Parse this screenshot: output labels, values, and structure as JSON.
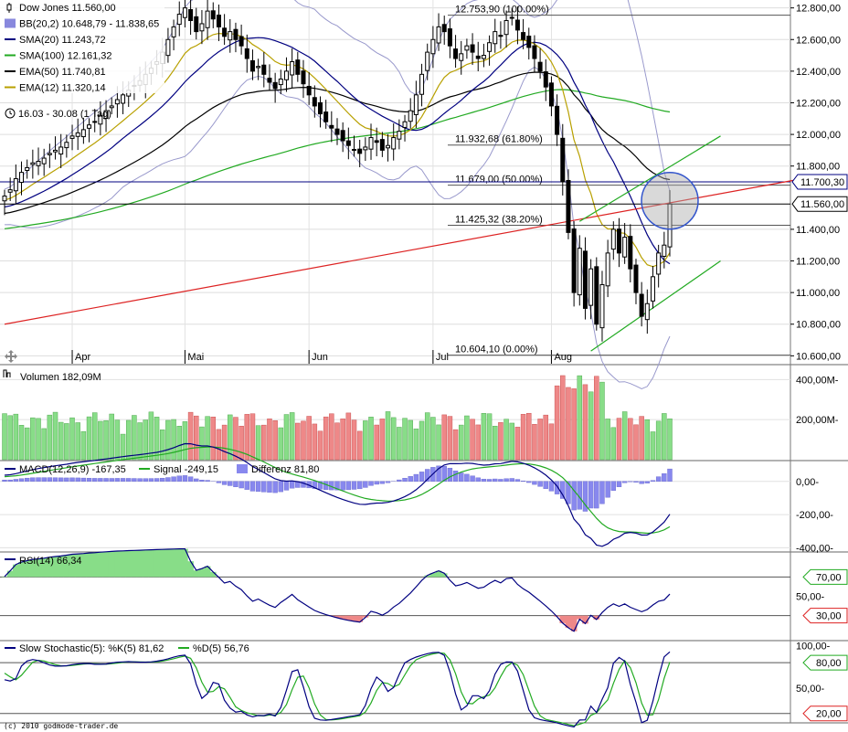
{
  "chart_data": [
    {
      "type": "candlestick",
      "panel": "price",
      "legend": [
        {
          "text": "Dow Jones 11.560,00",
          "color": "#000000",
          "marker": "candle"
        },
        {
          "text": "BB(20,2) 10.648,79 - 11.838,65",
          "color": "#8888dd",
          "marker": "box"
        },
        {
          "text": "SMA(20) 11.243,72",
          "color": "#000080",
          "marker": "line"
        },
        {
          "text": "SMA(100) 12.161,32",
          "color": "#22aa22",
          "marker": "line"
        },
        {
          "text": "EMA(50) 11.740,81",
          "color": "#000000",
          "marker": "line"
        },
        {
          "text": "EMA(12) 11.320,14",
          "color": "#b8a000",
          "marker": "line"
        }
      ],
      "period_text": "16.03 - 30.08 (1 Tag)",
      "ylim": [
        10550,
        12850
      ],
      "y_ticks": [
        "12.800,00",
        "12.600,00",
        "12.400,00",
        "12.200,00",
        "12.000,00",
        "11.800,00",
        "11.400,00",
        "11.200,00",
        "11.000,00",
        "10.800,00",
        "10.600,00"
      ],
      "y_tick_values": [
        12800,
        12600,
        12400,
        12200,
        12000,
        11800,
        11400,
        11200,
        11000,
        10800,
        10600
      ],
      "month_labels": [
        {
          "label": "Apr",
          "index": 12
        },
        {
          "label": "Mai",
          "index": 32
        },
        {
          "label": "Jun",
          "index": 54
        },
        {
          "label": "Jul",
          "index": 76
        },
        {
          "label": "Aug",
          "index": 97
        }
      ],
      "price_tags": [
        {
          "text": "11.700,30",
          "value": 11700.3,
          "color": "#000080"
        },
        {
          "text": "11.560,00",
          "value": 11560,
          "color": "#000000"
        }
      ],
      "fibonacci": [
        {
          "text": "12.753,90 (100.00%)",
          "value": 12753.9
        },
        {
          "text": "11.932,68 (61.80%)",
          "value": 11932.68
        },
        {
          "text": "11.679,00 (50.00%)",
          "value": 11679
        },
        {
          "text": "11.425,32 (38.20%)",
          "value": 11425.32
        },
        {
          "text": "10.604,10 (0.00%)",
          "value": 10604.1
        }
      ],
      "trendlines": [
        {
          "name": "red-trend",
          "color": "#dd2222",
          "from": [
            0,
            10800
          ],
          "to": [
            140,
            11710
          ]
        },
        {
          "name": "green-upper",
          "color": "#22aa22",
          "from": [
            102,
            11450
          ],
          "to": [
            127,
            11990
          ]
        },
        {
          "name": "green-lower",
          "color": "#22aa22",
          "from": [
            104,
            10630
          ],
          "to": [
            127,
            11200
          ]
        }
      ],
      "highlight_circle": {
        "index": 118,
        "value": 11580
      },
      "closes": [
        11610,
        11650,
        11720,
        11760,
        11790,
        11820,
        11830,
        11850,
        11880,
        11900,
        11920,
        11950,
        11990,
        12010,
        12030,
        12060,
        12080,
        12120,
        12150,
        12180,
        12220,
        12250,
        12280,
        12310,
        12340,
        12380,
        12420,
        12460,
        12520,
        12600,
        12680,
        12760,
        12800,
        12720,
        12650,
        12700,
        12780,
        12730,
        12680,
        12620,
        12650,
        12600,
        12560,
        12480,
        12400,
        12430,
        12380,
        12330,
        12290,
        12350,
        12400,
        12460,
        12380,
        12320,
        12250,
        12180,
        12130,
        12080,
        12040,
        12000,
        11960,
        11930,
        11900,
        11880,
        11920,
        11980,
        11950,
        11900,
        11930,
        11980,
        12020,
        12080,
        12150,
        12250,
        12380,
        12520,
        12600,
        12680,
        12650,
        12560,
        12480,
        12510,
        12560,
        12520,
        12480,
        12500,
        12580,
        12650,
        12620,
        12720,
        12740,
        12660,
        12600,
        12550,
        12480,
        12400,
        12300,
        12180,
        12000,
        11700,
        11380,
        11000,
        11280,
        10900,
        11150,
        10800,
        11050,
        11250,
        11400,
        11250,
        11350,
        11150,
        11000,
        10850,
        10930,
        11100,
        11250,
        11300,
        11560
      ],
      "bollinger": {
        "upper_end": 11838.65,
        "lower_end": 10648.79
      },
      "sma20_end": 11243.72,
      "sma100_end": 12161.32,
      "ema50_end": 11740.81,
      "ema12_end": 11320.14
    },
    {
      "type": "bar",
      "panel": "volume",
      "legend": [
        {
          "text": "Volumen 182,09M",
          "color": "#000000"
        }
      ],
      "ylim": [
        0,
        470
      ],
      "y_ticks": [
        "400,00M-",
        "200,00M-"
      ],
      "y_tick_values": [
        400,
        200
      ],
      "unit": "M"
    },
    {
      "type": "line",
      "panel": "macd",
      "legend": [
        {
          "text": "MACD(12,26,9) -167,35",
          "color": "#000080",
          "marker": "line"
        },
        {
          "text": "Signal -249,15",
          "color": "#22aa22",
          "marker": "line"
        },
        {
          "text": "Differenz 81,80",
          "color": "#8888ee",
          "marker": "box"
        }
      ],
      "ylim": [
        -420,
        120
      ],
      "y_ticks": [
        "0,00-",
        "-200,00-",
        "-400,00-"
      ],
      "y_tick_values": [
        0,
        -200,
        -400
      ],
      "macd_end": -167.35,
      "signal_end": -249.15,
      "diff_end": 81.8
    },
    {
      "type": "line",
      "panel": "rsi",
      "legend": [
        {
          "text": "RSI(14) 66,34",
          "color": "#000080",
          "marker": "line"
        }
      ],
      "ylim": [
        5,
        95
      ],
      "y_ticks": [
        "50,00-"
      ],
      "y_tick_values": [
        50
      ],
      "level_tags": [
        {
          "text": "70,00",
          "value": 70,
          "color": "#22aa22"
        },
        {
          "text": "30,00",
          "value": 30,
          "color": "#dd2222"
        }
      ],
      "rsi_end": 66.34
    },
    {
      "type": "line",
      "panel": "stochastic",
      "legend": [
        {
          "text": "Slow Stochastic(5): %K(5) 81,62",
          "color": "#000080",
          "marker": "line"
        },
        {
          "text": "%D(5) 56,76",
          "color": "#22aa22",
          "marker": "line"
        }
      ],
      "ylim": [
        10,
        105
      ],
      "y_ticks": [
        "100,00-",
        "50,00-"
      ],
      "y_tick_values": [
        100,
        50
      ],
      "level_tags": [
        {
          "text": "80,00",
          "value": 80,
          "color": "#22aa22"
        },
        {
          "text": "20,00",
          "value": 20,
          "color": "#dd2222"
        }
      ],
      "k_end": 81.62,
      "d_end": 56.76
    }
  ],
  "footer": {
    "copyright": "(c) 2010 godmode-trader.de"
  },
  "colors": {
    "up": "#88dd88",
    "down": "#ee8888",
    "grid": "#999999",
    "candle": "#000000"
  }
}
